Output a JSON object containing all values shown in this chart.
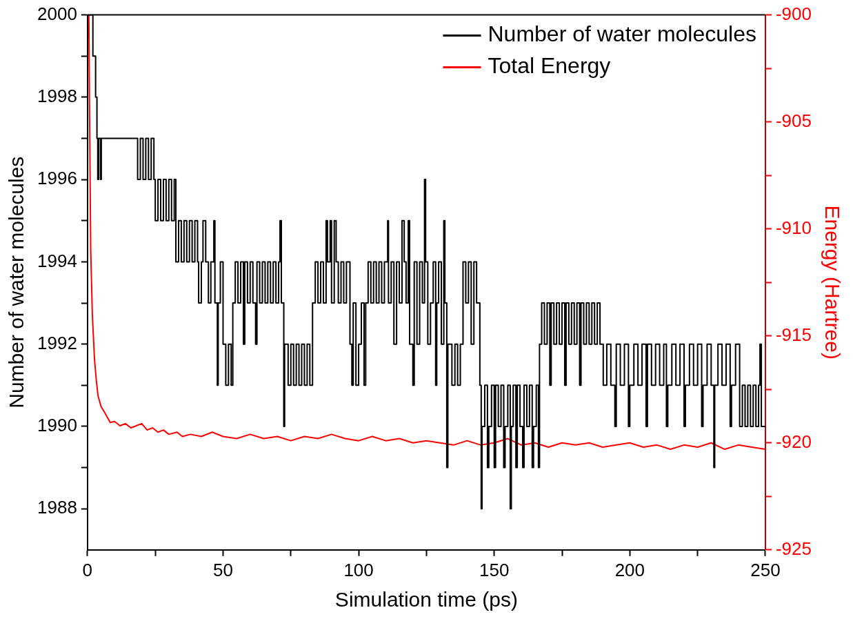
{
  "chart_data": {
    "type": "step",
    "xlabel": "Simulation time (ps)",
    "ylabel": "Number of water molecules",
    "y2label": "Energy (Hartree)",
    "xlim": [
      0,
      250
    ],
    "xticks": [
      0,
      {
        "value": 25,
        "label": null
      },
      50,
      {
        "value": 75,
        "label": null
      },
      100,
      {
        "value": 125,
        "label": null
      },
      150,
      {
        "value": 175,
        "label": null
      },
      200,
      {
        "value": 225,
        "label": null
      },
      250
    ],
    "ylim": [
      1987,
      2000
    ],
    "yticks": [
      1988,
      {
        "value": 1989,
        "label": null
      },
      1990,
      {
        "value": 1991,
        "label": null
      },
      1992,
      {
        "value": 1993,
        "label": null
      },
      1994,
      {
        "value": 1995,
        "label": null
      },
      1996,
      {
        "value": 1997,
        "label": null
      },
      1998,
      {
        "value": 1999,
        "label": null
      },
      2000
    ],
    "y2lim": [
      -925,
      -900
    ],
    "y2ticks": [
      -925,
      {
        "value": -922.5,
        "label": null
      },
      -920,
      {
        "value": -917.5,
        "label": null
      },
      -915,
      {
        "value": -912.5,
        "label": null
      },
      -910,
      {
        "value": -907.5,
        "label": null
      },
      -905,
      {
        "value": -902.5,
        "label": null
      },
      -900
    ],
    "grid": false,
    "legend": "top right",
    "marker": "none",
    "line_style": "solid",
    "series": [
      {
        "name": "Number of water molecules",
        "color": "#000000",
        "x": [
          0,
          2,
          3,
          3.5,
          3.8,
          4.1,
          4.8,
          5.1,
          18.5,
          19.5,
          20.5,
          21.5,
          22.5,
          23.5,
          24.5,
          25,
          26,
          27,
          28,
          29,
          30,
          31,
          32,
          32.6,
          33.6,
          34.6,
          35.6,
          36.6,
          37.6,
          38.6,
          39.6,
          40.6,
          41,
          42,
          42.6,
          43.6,
          44.6,
          45.5,
          46.6,
          47,
          47.9,
          48.2,
          49,
          50,
          51,
          52,
          53,
          53.6,
          54.5,
          55.5,
          56.5,
          57.5,
          58,
          59,
          60,
          61,
          62,
          62.5,
          63.5,
          64.5,
          65.5,
          66.5,
          67.5,
          68.5,
          69.5,
          70.5,
          71,
          71.5,
          72.4,
          72.7,
          74,
          75,
          76,
          77,
          78,
          79,
          80,
          81,
          82,
          83,
          84,
          85,
          86,
          87,
          88,
          88.5,
          89.5,
          90,
          91,
          91.7,
          92.5,
          93.5,
          94.5,
          95.5,
          96.8,
          97.5,
          98,
          99,
          100,
          101,
          102,
          102.6,
          103.5,
          104.5,
          105.5,
          106.5,
          107.5,
          108.5,
          109.5,
          110.7,
          111,
          112,
          113,
          114,
          115,
          116,
          116.8,
          117.5,
          118.3,
          118.8,
          120,
          120.5,
          121.5,
          122.5,
          123.5,
          124.3,
          124.7,
          125.5,
          126.5,
          127.5,
          128.4,
          128.8,
          129.5,
          130.5,
          131.4,
          131.8,
          132.5,
          132.9,
          134.4,
          135.5,
          136.5,
          137.5,
          138.5,
          139.5,
          140.5,
          141.5,
          142.5,
          143.5,
          144.7,
          145.2,
          145.5,
          146.5,
          147.5,
          148,
          149,
          150,
          150.5,
          151.5,
          152.5,
          153.5,
          154,
          155,
          155.9,
          156.3,
          157,
          158,
          158.5,
          159.5,
          160.5,
          161,
          162,
          163,
          164,
          164.5,
          165.5,
          166.3,
          166.7,
          167.5,
          168.5,
          169.5,
          170.5,
          171,
          172,
          173,
          174,
          175,
          176,
          176.5,
          177.5,
          178.5,
          179.5,
          180.5,
          181.5,
          182,
          183,
          184,
          185,
          186,
          187,
          188,
          189,
          190.2,
          191.5,
          193,
          194.5,
          195,
          196.5,
          198,
          199.5,
          200,
          201.5,
          203,
          204.5,
          206,
          206.5,
          208,
          209.5,
          211,
          212.5,
          213.5,
          214,
          215.5,
          217,
          218.5,
          220,
          220.5,
          222,
          223.5,
          225,
          226.5,
          227,
          228.5,
          230,
          231,
          231.3,
          232.5,
          234,
          235.5,
          237,
          237.5,
          239,
          240.5,
          241.5,
          242.5,
          243.5,
          244.5,
          245.5,
          246.5,
          247.5,
          248,
          248.5,
          250
        ],
        "values": [
          2000,
          1999,
          1998,
          1997,
          1996,
          1997,
          1996,
          1997,
          1996,
          1997,
          1996,
          1997,
          1996,
          1997,
          1996,
          1995,
          1996,
          1995,
          1996,
          1995,
          1996,
          1995,
          1996,
          1994,
          1995,
          1994,
          1995,
          1994,
          1995,
          1994,
          1995,
          1994,
          1993,
          1994,
          1995,
          1994,
          1993,
          1994,
          1995,
          1993,
          1991,
          1993,
          1994,
          1992,
          1991,
          1992,
          1991,
          1993,
          1994,
          1993,
          1994,
          1992,
          1994,
          1993,
          1994,
          1993,
          1992,
          1994,
          1993,
          1994,
          1993,
          1994,
          1993,
          1994,
          1993,
          1994,
          1995,
          1993,
          1990,
          1992,
          1991,
          1992,
          1991,
          1992,
          1991,
          1992,
          1991,
          1992,
          1991,
          1993,
          1994,
          1993,
          1994,
          1993,
          1995,
          1994,
          1995,
          1993,
          1995,
          1994,
          1993,
          1994,
          1993,
          1994,
          1992,
          1991,
          1993,
          1991,
          1992,
          1993,
          1991,
          1993,
          1994,
          1993,
          1994,
          1993,
          1994,
          1993,
          1994,
          1995,
          1993,
          1994,
          1992,
          1994,
          1993,
          1995,
          1994,
          1993,
          1995,
          1992,
          1991,
          1994,
          1992,
          1994,
          1993,
          1996,
          1994,
          1992,
          1993,
          1994,
          1991,
          1993,
          1994,
          1992,
          1995,
          1993,
          1989,
          1992,
          1991,
          1992,
          1991,
          1992,
          1994,
          1993,
          1994,
          1992,
          1994,
          1993,
          1991,
          1988,
          1990,
          1991,
          1989,
          1990,
          1991,
          1989,
          1991,
          1990,
          1991,
          1989,
          1990,
          1991,
          1988,
          1990,
          1991,
          1989,
          1991,
          1990,
          1989,
          1991,
          1990,
          1991,
          1989,
          1990,
          1991,
          1989,
          1992,
          1993,
          1992,
          1993,
          1991,
          1993,
          1992,
          1993,
          1992,
          1993,
          1991,
          1993,
          1992,
          1993,
          1992,
          1993,
          1991,
          1993,
          1992,
          1993,
          1992,
          1993,
          1992,
          1993,
          1992,
          1991,
          1992,
          1991,
          1990,
          1992,
          1991,
          1992,
          1990,
          1991,
          1992,
          1991,
          1992,
          1990,
          1992,
          1991,
          1992,
          1991,
          1992,
          1990,
          1991,
          1992,
          1991,
          1992,
          1990,
          1991,
          1992,
          1991,
          1992,
          1990,
          1991,
          1992,
          1991,
          1989,
          1991,
          1992,
          1991,
          1992,
          1990,
          1991,
          1992,
          1990,
          1991,
          1990,
          1991,
          1990,
          1991,
          1990,
          1991,
          1992,
          1990,
          1990
        ]
      },
      {
        "name": "Total Energy",
        "type": "line",
        "axis": "y2",
        "color": "#ff0000",
        "x": [
          0.5,
          0.8,
          1.2,
          1.8,
          2.6,
          3.2,
          3.9,
          5,
          6.4,
          8.4,
          10,
          12,
          14,
          16,
          18,
          20,
          22,
          24,
          26,
          28,
          30,
          33,
          35,
          38,
          42,
          46,
          50,
          55,
          60,
          65,
          70,
          75,
          80,
          85,
          90,
          95,
          100,
          105,
          110,
          115,
          120,
          125,
          130,
          135,
          140,
          145,
          150,
          155,
          160,
          165,
          170,
          175,
          180,
          185,
          190,
          195,
          200,
          205,
          210,
          215,
          220,
          225,
          230,
          235,
          240,
          245,
          250
        ],
        "values": [
          -900,
          -905,
          -911,
          -914,
          -916.1,
          -917,
          -917.8,
          -918.3,
          -918.6,
          -919.05,
          -919,
          -919.2,
          -919.1,
          -919.3,
          -919.2,
          -919.1,
          -919.4,
          -919.3,
          -919.5,
          -919.4,
          -919.6,
          -919.5,
          -919.7,
          -919.6,
          -919.7,
          -919.5,
          -919.7,
          -919.8,
          -919.6,
          -919.8,
          -919.7,
          -919.9,
          -919.7,
          -919.8,
          -919.6,
          -919.8,
          -919.9,
          -919.7,
          -919.9,
          -919.8,
          -920,
          -919.9,
          -920,
          -920.1,
          -919.9,
          -920.1,
          -920,
          -919.8,
          -920.1,
          -920,
          -920.2,
          -920,
          -920.1,
          -920,
          -920.2,
          -920.1,
          -920,
          -920.2,
          -920.1,
          -920.3,
          -920.1,
          -920.2,
          -920,
          -920.3,
          -920.1,
          -920.2,
          -920.3
        ]
      }
    ]
  }
}
